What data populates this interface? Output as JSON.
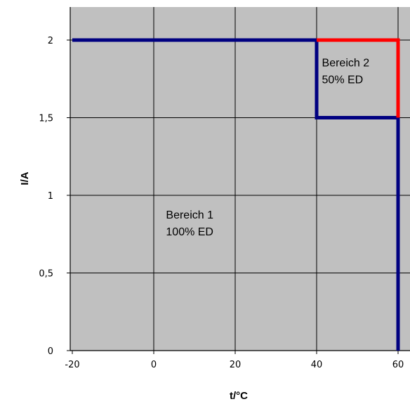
{
  "chart_data": {
    "type": "line",
    "title": "",
    "xlabel": "t/°C",
    "ylabel": "I/A",
    "xlim": [
      -20,
      62
    ],
    "ylim": [
      0,
      2.2
    ],
    "x_ticks": [
      -20,
      0,
      20,
      40,
      60
    ],
    "x_tick_labels": [
      "-20",
      "0",
      "20",
      "40",
      "60"
    ],
    "y_ticks": [
      0,
      0.5,
      1,
      1.5,
      2
    ],
    "y_tick_labels": [
      "0",
      "0,5",
      "1",
      "1,5",
      "2"
    ],
    "grid": true,
    "background_color": "#c0c0c0",
    "series": [
      {
        "color": "#000080",
        "points": [
          [
            -20,
            2
          ],
          [
            40,
            2
          ],
          [
            40,
            1.5
          ],
          [
            60,
            1.5
          ],
          [
            60,
            0
          ]
        ]
      },
      {
        "color": "#ff0000",
        "points": [
          [
            40,
            2
          ],
          [
            60,
            2
          ],
          [
            60,
            1.5
          ]
        ]
      }
    ],
    "annotations": [
      {
        "lines": [
          "Bereich 1",
          "100% ED"
        ],
        "x": 3,
        "y": 0.85
      },
      {
        "lines": [
          "Bereich 2",
          "50% ED"
        ],
        "x": 41.3,
        "y": 1.83
      }
    ]
  }
}
